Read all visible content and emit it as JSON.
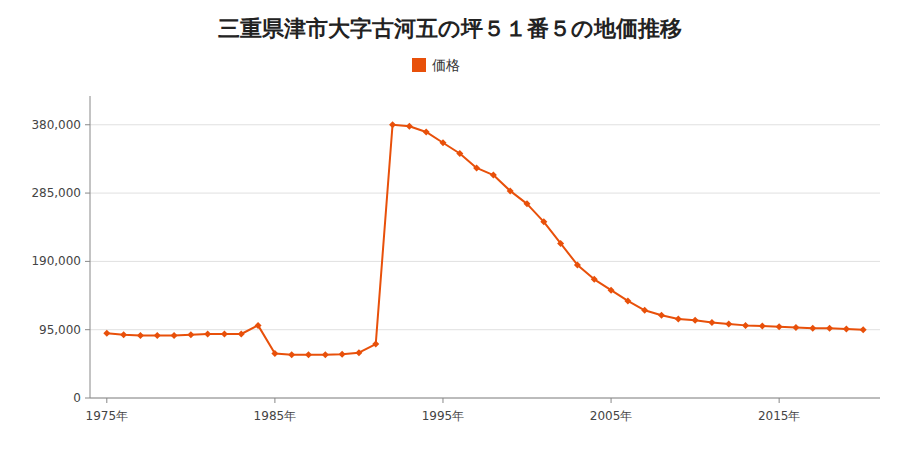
{
  "chart_data": {
    "type": "line",
    "title": "三重県津市大字古河五の坪５１番５の地価推移",
    "x": [
      1975,
      1976,
      1977,
      1978,
      1979,
      1980,
      1981,
      1982,
      1983,
      1984,
      1985,
      1986,
      1987,
      1988,
      1989,
      1990,
      1991,
      1992,
      1993,
      1994,
      1995,
      1996,
      1997,
      1998,
      1999,
      2000,
      2001,
      2002,
      2003,
      2004,
      2005,
      2006,
      2007,
      2008,
      2009,
      2010,
      2011,
      2012,
      2013,
      2014,
      2015,
      2016,
      2017,
      2018,
      2019,
      2020
    ],
    "series": [
      {
        "name": "価格",
        "color": "#e8500a",
        "marker": "diamond",
        "values": [
          90000,
          88000,
          87000,
          87000,
          87000,
          88000,
          89000,
          89000,
          89000,
          101000,
          62000,
          60000,
          60000,
          60000,
          61000,
          63000,
          75000,
          380000,
          378000,
          370000,
          355000,
          340000,
          320000,
          310000,
          288000,
          270000,
          245000,
          215000,
          185000,
          165000,
          150000,
          135000,
          122000,
          115000,
          110000,
          108000,
          105000,
          103000,
          101000,
          100000,
          99000,
          98000,
          97000,
          97000,
          96000,
          95000
        ]
      }
    ],
    "xlim": [
      1974,
      2021
    ],
    "xticks": [
      {
        "value": 1975,
        "label": "1975年"
      },
      {
        "value": 1985,
        "label": "1985年"
      },
      {
        "value": 1995,
        "label": "1995年"
      },
      {
        "value": 2005,
        "label": "2005年"
      },
      {
        "value": 2015,
        "label": "2015年"
      }
    ],
    "ylim": [
      0,
      420000
    ],
    "yticks": [
      0,
      {
        "value": 95000,
        "label": "95,000"
      },
      {
        "value": 190000,
        "label": "190,000"
      },
      {
        "value": 285000,
        "label": "285,000"
      },
      {
        "value": 380000,
        "label": "380,000"
      }
    ],
    "grid": true,
    "legend": "top"
  }
}
